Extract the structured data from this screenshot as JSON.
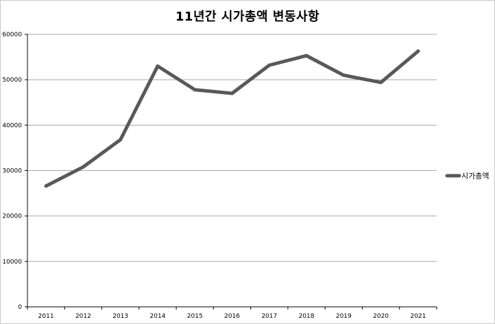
{
  "chart_data": {
    "type": "line",
    "title": "11년간 시가총액 변동사항",
    "xlabel": "",
    "ylabel": "",
    "categories": [
      "2011",
      "2012",
      "2013",
      "2014",
      "2015",
      "2016",
      "2017",
      "2018",
      "2019",
      "2020",
      "2021"
    ],
    "series": [
      {
        "name": "시가총액",
        "values": [
          26600,
          30800,
          36800,
          53000,
          47800,
          47000,
          53200,
          55300,
          51000,
          49400,
          56300
        ]
      }
    ],
    "ylim": [
      0,
      60000
    ],
    "yticks": [
      0,
      10000,
      20000,
      30000,
      40000,
      50000,
      60000
    ],
    "ytick_labels": [
      "0",
      "10000",
      "20000",
      "30000",
      "40000",
      "50000",
      "60000"
    ],
    "grid": true,
    "legend_position": "right",
    "colors": {
      "line": "#595959",
      "grid": "#a6a6a6",
      "axis": "#000000"
    }
  }
}
